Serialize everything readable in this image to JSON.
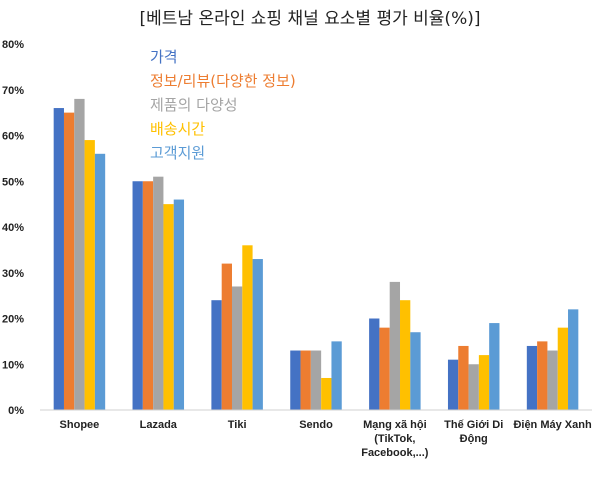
{
  "chart_data": {
    "type": "bar",
    "title": "[베트남 온라인 쇼핑 채널 요소별 평가 비율(%)]",
    "xlabel": "",
    "ylabel": "",
    "ylim": [
      0,
      80
    ],
    "yticks": [
      "0%",
      "10%",
      "20%",
      "30%",
      "40%",
      "50%",
      "60%",
      "70%",
      "80%"
    ],
    "grid": false,
    "legend_position": "top-left",
    "categories": [
      [
        "Shopee"
      ],
      [
        "Lazada"
      ],
      [
        "Tiki"
      ],
      [
        "Sendo"
      ],
      [
        "Mạng xã hội",
        "(TikTok,",
        "Facebook,...)"
      ],
      [
        "Thế Giới Di",
        "Động"
      ],
      [
        "Điện Máy Xanh"
      ]
    ],
    "series": [
      {
        "name": "가격",
        "color": "#4472C4",
        "values": [
          66,
          50,
          24,
          13,
          20,
          11,
          14
        ]
      },
      {
        "name": "정보/리뷰(다양한 정보)",
        "color": "#ED7D31",
        "values": [
          65,
          50,
          32,
          13,
          18,
          14,
          15
        ]
      },
      {
        "name": "제품의 다양성",
        "color": "#A5A5A5",
        "values": [
          68,
          51,
          27,
          13,
          28,
          10,
          13
        ]
      },
      {
        "name": "배송시간",
        "color": "#FFC000",
        "values": [
          59,
          45,
          36,
          7,
          24,
          12,
          18
        ]
      },
      {
        "name": "고객지원",
        "color": "#5B9BD5",
        "values": [
          56,
          46,
          33,
          15,
          17,
          19,
          22
        ]
      }
    ]
  }
}
